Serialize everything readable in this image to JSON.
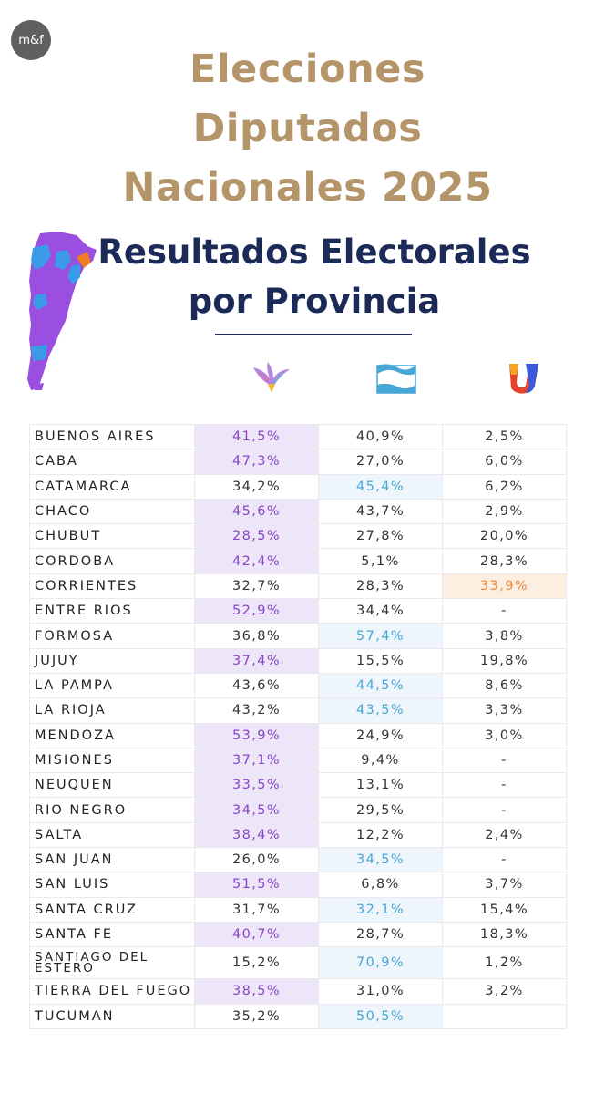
{
  "brand": {
    "logo_text": "m&f"
  },
  "title_lines": [
    "Elecciones",
    "Diputados",
    "Nacionales 2025"
  ],
  "subtitle_lines": [
    "Resultados Electorales",
    "por Provincia"
  ],
  "parties": [
    {
      "icon": "lla-eagle-icon",
      "color": "#8a45c7"
    },
    {
      "icon": "argentina-flag-icon",
      "color": "#47a6d6"
    },
    {
      "icon": "provincias-unidas-u-icon",
      "color": "#e98a3c"
    }
  ],
  "table": {
    "rows": [
      {
        "province": "BUENOS AIRES",
        "values": [
          "41,5%",
          "40,9%",
          "2,5%"
        ],
        "winner": 0
      },
      {
        "province": "CABA",
        "values": [
          "47,3%",
          "27,0%",
          "6,0%"
        ],
        "winner": 0
      },
      {
        "province": "CATAMARCA",
        "values": [
          "34,2%",
          "45,4%",
          "6,2%"
        ],
        "winner": 1
      },
      {
        "province": "CHACO",
        "values": [
          "45,6%",
          "43,7%",
          "2,9%"
        ],
        "winner": 0
      },
      {
        "province": "CHUBUT",
        "values": [
          "28,5%",
          "27,8%",
          "20,0%"
        ],
        "winner": 0
      },
      {
        "province": "CORDOBA",
        "values": [
          "42,4%",
          "5,1%",
          "28,3%"
        ],
        "winner": 0
      },
      {
        "province": "CORRIENTES",
        "values": [
          "32,7%",
          "28,3%",
          "33,9%"
        ],
        "winner": 2
      },
      {
        "province": "ENTRE RIOS",
        "values": [
          "52,9%",
          "34,4%",
          "-"
        ],
        "winner": 0
      },
      {
        "province": "FORMOSA",
        "values": [
          "36,8%",
          "57,4%",
          "3,8%"
        ],
        "winner": 1
      },
      {
        "province": "JUJUY",
        "values": [
          "37,4%",
          "15,5%",
          "19,8%"
        ],
        "winner": 0
      },
      {
        "province": "LA PAMPA",
        "values": [
          "43,6%",
          "44,5%",
          "8,6%"
        ],
        "winner": 1
      },
      {
        "province": "LA RIOJA",
        "values": [
          "43,2%",
          "43,5%",
          "3,3%"
        ],
        "winner": 1
      },
      {
        "province": "MENDOZA",
        "values": [
          "53,9%",
          "24,9%",
          "3,0%"
        ],
        "winner": 0
      },
      {
        "province": "MISIONES",
        "values": [
          "37,1%",
          "9,4%",
          "-"
        ],
        "winner": 0
      },
      {
        "province": "NEUQUEN",
        "values": [
          "33,5%",
          "13,1%",
          "-"
        ],
        "winner": 0
      },
      {
        "province": "RIO NEGRO",
        "values": [
          "34,5%",
          "29,5%",
          "-"
        ],
        "winner": 0
      },
      {
        "province": "SALTA",
        "values": [
          "38,4%",
          "12,2%",
          "2,4%"
        ],
        "winner": 0
      },
      {
        "province": "SAN JUAN",
        "values": [
          "26,0%",
          "34,5%",
          "-"
        ],
        "winner": 1
      },
      {
        "province": "SAN LUIS",
        "values": [
          "51,5%",
          "6,8%",
          "3,7%"
        ],
        "winner": 0
      },
      {
        "province": "SANTA CRUZ",
        "values": [
          "31,7%",
          "32,1%",
          "15,4%"
        ],
        "winner": 1
      },
      {
        "province": "SANTA FE",
        "values": [
          "40,7%",
          "28,7%",
          "18,3%"
        ],
        "winner": 0
      },
      {
        "province": "SANTIAGO DEL ESTERO",
        "values": [
          "15,2%",
          "70,9%",
          "1,2%"
        ],
        "winner": 1
      },
      {
        "province": "TIERRA DEL FUEGO",
        "values": [
          "38,5%",
          "31,0%",
          "3,2%"
        ],
        "winner": 0
      },
      {
        "province": "TUCUMAN",
        "values": [
          "35,2%",
          "50,5%",
          ""
        ],
        "winner": 1
      }
    ]
  }
}
